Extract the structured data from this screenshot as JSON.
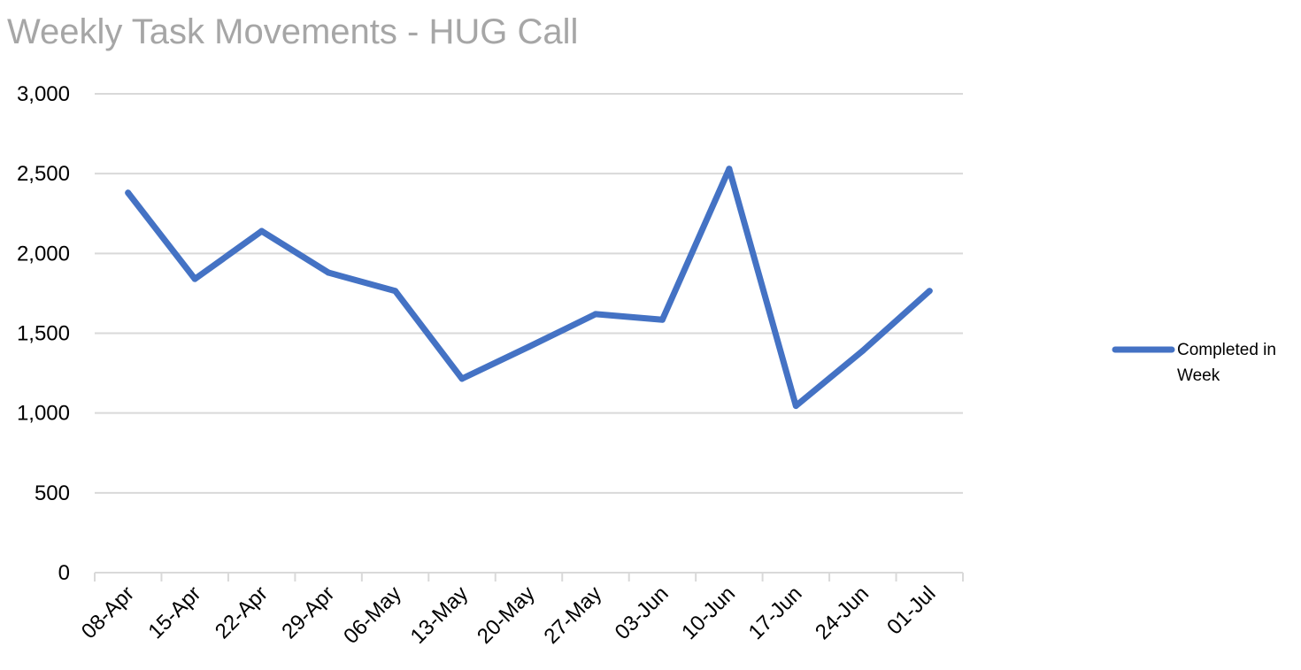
{
  "chart_data": {
    "type": "line",
    "title": "Weekly Task Movements - HUG Call",
    "xlabel": "",
    "ylabel": "",
    "categories": [
      "08-Apr",
      "15-Apr",
      "22-Apr",
      "29-Apr",
      "06-May",
      "13-May",
      "20-May",
      "27-May",
      "03-Jun",
      "10-Jun",
      "17-Jun",
      "24-Jun",
      "01-Jul"
    ],
    "series": [
      {
        "name": "Completed in Week",
        "values": [
          2380,
          1840,
          2140,
          1880,
          1765,
          1215,
          1415,
          1620,
          1585,
          2530,
          1045,
          1390,
          1765
        ],
        "color": "#4472c4"
      }
    ],
    "y_ticks": [
      "0",
      "500",
      "1,000",
      "1,500",
      "2,000",
      "2,500",
      "3,000"
    ],
    "ylim": [
      0,
      3000
    ],
    "grid": true,
    "legend": {
      "position": "right",
      "lines": [
        "Completed in",
        "Week"
      ]
    }
  }
}
